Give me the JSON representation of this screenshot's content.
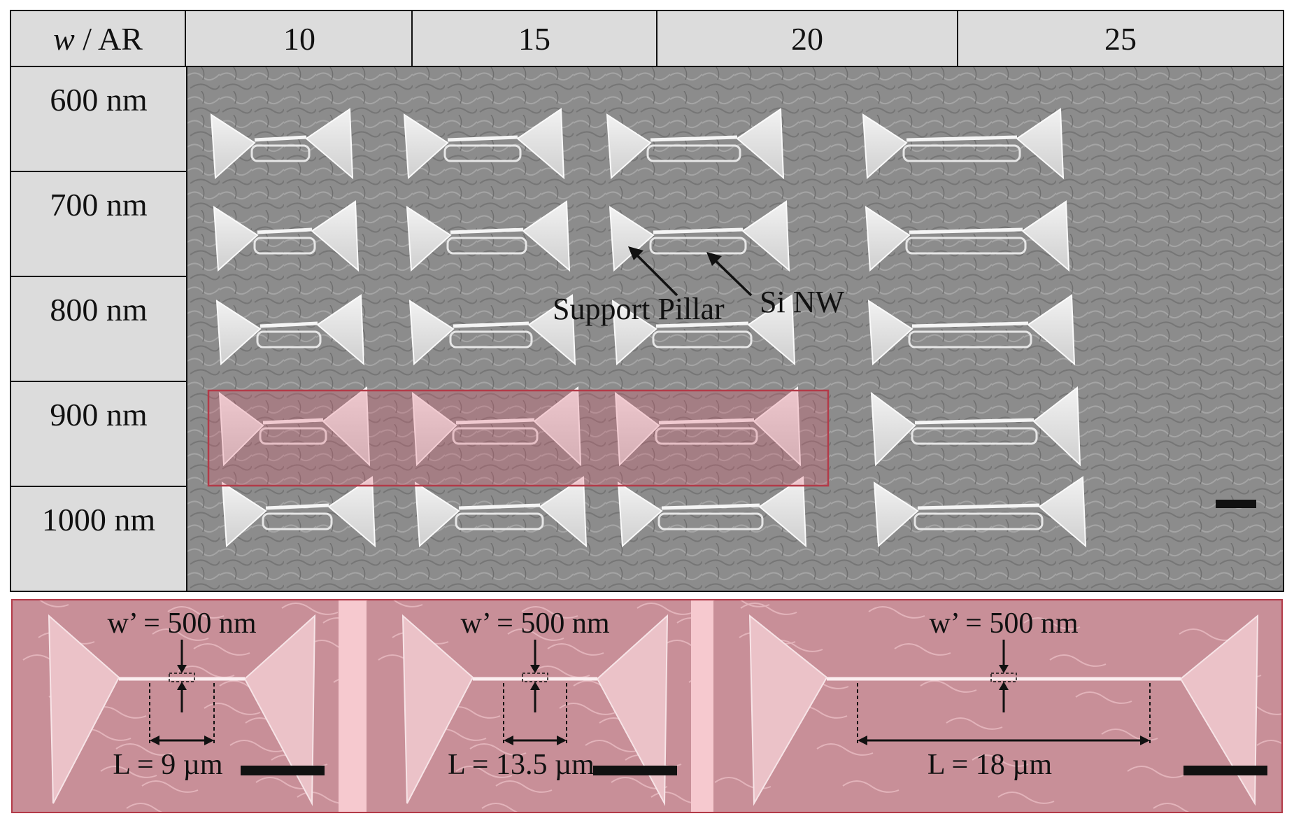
{
  "grid": {
    "corner_label": "w / AR",
    "corner_italic": "w",
    "corner_rest": " / AR",
    "columns": [
      "10",
      "15",
      "20",
      "25"
    ],
    "rows": [
      "600 nm",
      "700 nm",
      "800 nm",
      "900 nm",
      "1000 nm"
    ]
  },
  "annotations": {
    "support_pillar": "Support Pillar",
    "si_nw": "Si NW"
  },
  "zoom_panels": [
    {
      "w_label": "w’ = 500 nm",
      "l_label": "L = 9 µm"
    },
    {
      "w_label": "w’ = 500 nm",
      "l_label": "L = 13.5 µm"
    },
    {
      "w_label": "w’ = 500 nm",
      "l_label": "L = 18 µm"
    }
  ],
  "colors": {
    "sem_background": "#8a8a8a",
    "structure": "#e9e9e9",
    "highlight": "#b33a48",
    "highlight_fill": "#f0b4bd",
    "table_fill": "#dcdcdc"
  }
}
